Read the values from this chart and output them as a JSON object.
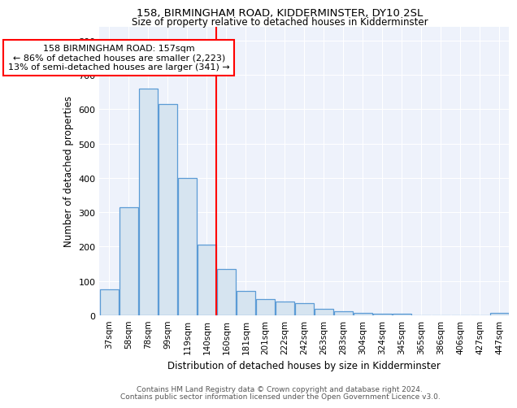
{
  "title": "158, BIRMINGHAM ROAD, KIDDERMINSTER, DY10 2SL",
  "subtitle": "Size of property relative to detached houses in Kidderminster",
  "xlabel": "Distribution of detached houses by size in Kidderminster",
  "ylabel": "Number of detached properties",
  "categories": [
    "37sqm",
    "58sqm",
    "78sqm",
    "99sqm",
    "119sqm",
    "140sqm",
    "160sqm",
    "181sqm",
    "201sqm",
    "222sqm",
    "242sqm",
    "263sqm",
    "283sqm",
    "304sqm",
    "324sqm",
    "345sqm",
    "365sqm",
    "386sqm",
    "406sqm",
    "427sqm",
    "447sqm"
  ],
  "values": [
    75,
    315,
    660,
    615,
    400,
    207,
    135,
    70,
    47,
    40,
    35,
    18,
    12,
    8,
    5,
    5,
    0,
    0,
    0,
    0,
    8
  ],
  "bar_color": "#d6e4f0",
  "bar_edge_color": "#5b9bd5",
  "red_line_index": 6,
  "annotation_text": "158 BIRMINGHAM ROAD: 157sqm\n← 86% of detached houses are smaller (2,223)\n13% of semi-detached houses are larger (341) →",
  "ylim": [
    0,
    840
  ],
  "yticks": [
    0,
    100,
    200,
    300,
    400,
    500,
    600,
    700,
    800
  ],
  "background_color": "#eef2fb",
  "footer_line1": "Contains HM Land Registry data © Crown copyright and database right 2024.",
  "footer_line2": "Contains public sector information licensed under the Open Government Licence v3.0."
}
